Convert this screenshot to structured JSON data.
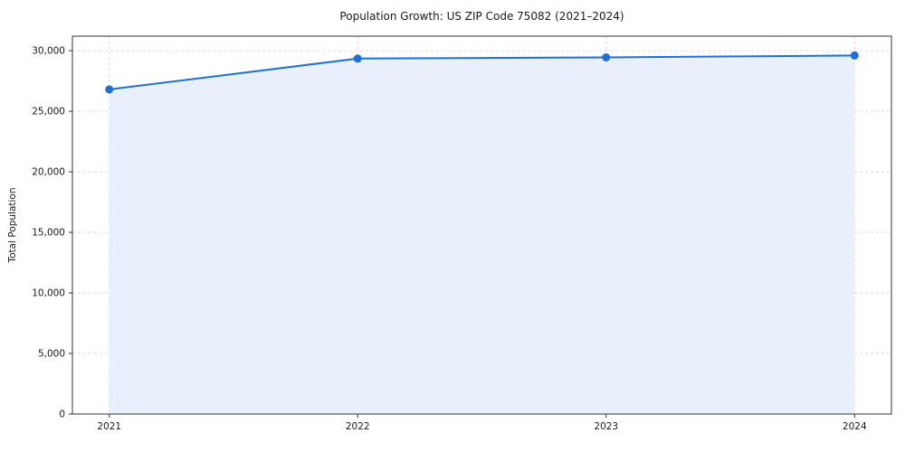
{
  "figure": {
    "background": "#ffffff"
  },
  "chart_data": {
    "type": "line",
    "title": "Population Growth: US ZIP Code 75082 (2021–2024)",
    "xlabel": "",
    "ylabel": "Total Population",
    "x": [
      "2021",
      "2022",
      "2023",
      "2024"
    ],
    "series": [
      {
        "name": "Total Population",
        "values": [
          26800,
          29350,
          29450,
          29600
        ]
      }
    ],
    "ylim": [
      0,
      31200
    ],
    "yticks": [
      0,
      5000,
      10000,
      15000,
      20000,
      25000,
      30000
    ],
    "grid": true,
    "grid_style": "dashed",
    "area_fill": true,
    "legend": "none",
    "colors": {
      "line": "#1f6fd6",
      "marker": "#1f6fd6",
      "area": "#e8f0fc",
      "grid": "#d9d9d9",
      "spine": "#333333",
      "tick_text": "#1a1a1a"
    }
  }
}
